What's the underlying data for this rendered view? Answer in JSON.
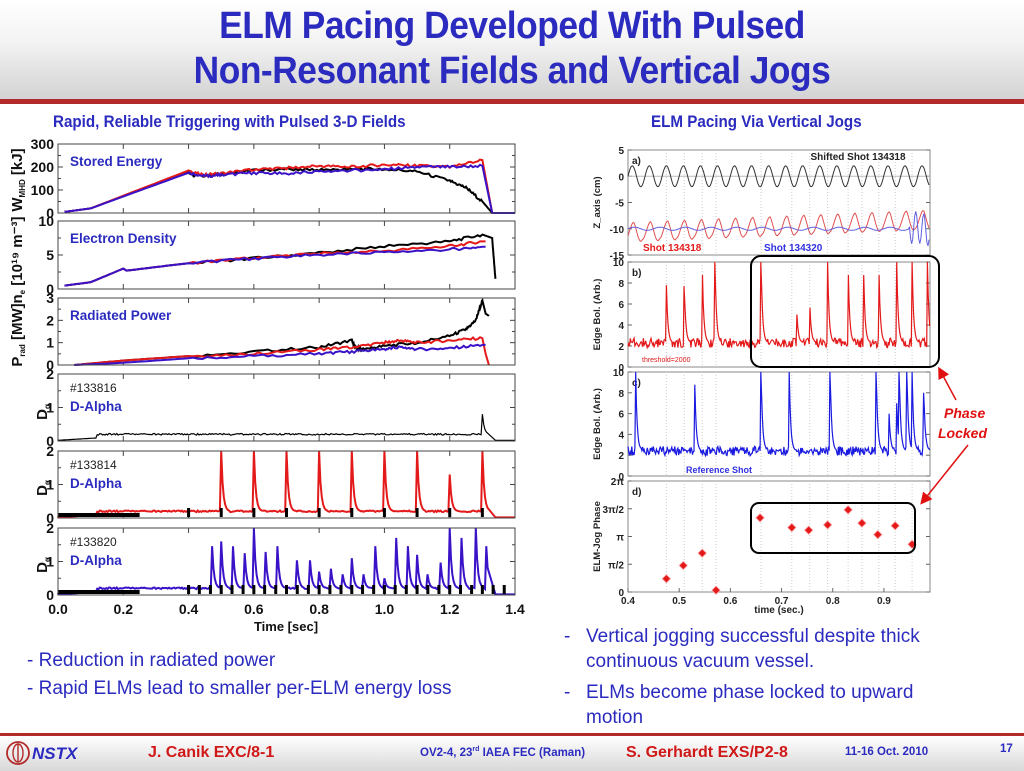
{
  "slide": {
    "title_line1": "ELM Pacing Developed With Pulsed",
    "title_line2": "Non-Resonant Fields and Vertical Jogs",
    "left_heading": "Rapid, Reliable Triggering with Pulsed 3-D Fields",
    "right_heading": "ELM Pacing Via Vertical Jogs",
    "left_bullets": [
      "- Reduction in radiated power",
      "- Rapid ELMs lead to smaller per-ELM energy loss"
    ],
    "right_bullets": [
      {
        "dash": "-",
        "line1": "Vertical jogging successful despite thick",
        "line2": "continuous vacuum vessel."
      },
      {
        "dash": "-",
        "line1": "ELMs become phase locked to upward",
        "line2": "motion"
      }
    ],
    "annotation": {
      "line1": "Phase",
      "line2": "Locked",
      "color": "#e01010"
    },
    "colors": {
      "title": "#2b2bbf",
      "accent_red": "#b22a2a",
      "series_black": "#000000",
      "series_red": "#e41a1a",
      "series_blue": "#3a12c8"
    }
  },
  "footer": {
    "logo_text": "NSTX",
    "author1": "J. Canik EXC/8-1",
    "conference": "OV2-4, 23",
    "conference_sup": "rd",
    "conference_rest": " IAEA FEC (Raman)",
    "author2": "S. Gerhardt EXS/P2-8",
    "date": "11-16 Oct. 2010",
    "page": "17"
  },
  "chart_data": [
    {
      "type": "line",
      "title": "Stored Energy",
      "ylabel": "W_MHD [kJ]",
      "xlim": [
        0,
        1.4
      ],
      "ylim": [
        0,
        300
      ],
      "yticks": [
        0,
        100,
        200,
        300
      ],
      "series": [
        {
          "name": "#133816",
          "color": "#000000",
          "x": [
            0.02,
            0.1,
            0.4,
            0.42,
            0.5,
            0.6,
            0.7,
            0.8,
            0.9,
            1.0,
            1.1,
            1.2,
            1.25,
            1.3,
            1.33
          ],
          "y": [
            5,
            20,
            180,
            160,
            170,
            185,
            190,
            188,
            190,
            192,
            180,
            140,
            110,
            50,
            0
          ]
        },
        {
          "name": "#133814",
          "color": "#e41a1a",
          "x": [
            0.02,
            0.1,
            0.4,
            0.45,
            0.5,
            0.6,
            0.7,
            0.8,
            0.9,
            1.0,
            1.1,
            1.2,
            1.3,
            1.33,
            1.4
          ],
          "y": [
            5,
            20,
            185,
            165,
            172,
            190,
            195,
            205,
            200,
            210,
            205,
            200,
            230,
            0,
            0
          ]
        },
        {
          "name": "#133820",
          "color": "#3a12c8",
          "x": [
            0.02,
            0.1,
            0.4,
            0.45,
            0.5,
            0.6,
            0.7,
            0.8,
            0.9,
            1.0,
            1.1,
            1.2,
            1.3,
            1.33,
            1.4
          ],
          "y": [
            5,
            20,
            175,
            160,
            165,
            175,
            170,
            180,
            185,
            190,
            200,
            200,
            205,
            0,
            0
          ]
        }
      ]
    },
    {
      "type": "line",
      "title": "Electron Density",
      "ylabel": "n_e [10^19 m^-3]",
      "xlim": [
        0,
        1.4
      ],
      "ylim": [
        0,
        10
      ],
      "yticks": [
        0,
        5,
        10
      ],
      "series": [
        {
          "name": "#133816",
          "color": "#000000",
          "x": [
            0.02,
            0.1,
            0.2,
            0.21,
            0.4,
            0.6,
            0.8,
            1.0,
            1.2,
            1.3,
            1.33,
            1.34
          ],
          "y": [
            0.5,
            1,
            3,
            2.7,
            3.8,
            4.5,
            5.3,
            6.3,
            7.0,
            8.0,
            7.5,
            1.5
          ]
        },
        {
          "name": "#133814",
          "color": "#e41a1a",
          "x": [
            0.02,
            0.1,
            0.2,
            0.21,
            0.4,
            0.6,
            0.8,
            1.0,
            1.2,
            1.3,
            1.31
          ],
          "y": [
            0.5,
            1,
            3,
            2.7,
            3.8,
            4.6,
            5.2,
            5.6,
            6.3,
            7.0,
            7.0
          ]
        },
        {
          "name": "#133820",
          "color": "#3a12c8",
          "x": [
            0.02,
            0.1,
            0.2,
            0.21,
            0.4,
            0.6,
            0.8,
            1.0,
            1.2,
            1.3,
            1.31
          ],
          "y": [
            0.5,
            1,
            3,
            2.7,
            3.8,
            4.5,
            5.0,
            5.4,
            5.8,
            6.2,
            6.2
          ]
        }
      ]
    },
    {
      "type": "line",
      "title": "Radiated Power",
      "ylabel": "P_rad [MW]",
      "xlim": [
        0,
        1.4
      ],
      "ylim": [
        0,
        3
      ],
      "yticks": [
        0,
        1,
        2,
        3
      ],
      "series": [
        {
          "name": "#133816",
          "color": "#000000",
          "x": [
            0.05,
            0.2,
            0.4,
            0.6,
            0.8,
            0.9,
            0.91,
            0.93,
            1.0,
            1.1,
            1.2,
            1.25,
            1.28,
            1.3,
            1.31,
            1.32
          ],
          "y": [
            0.0,
            0.2,
            0.4,
            0.6,
            0.8,
            1.1,
            0.8,
            0.7,
            0.85,
            1.0,
            1.3,
            1.6,
            2.0,
            2.9,
            2.3,
            2.2
          ]
        },
        {
          "name": "#133814",
          "color": "#e41a1a",
          "x": [
            0.05,
            0.2,
            0.4,
            0.6,
            0.8,
            0.9,
            1.0,
            1.05,
            1.1,
            1.2,
            1.3,
            1.31,
            1.32
          ],
          "y": [
            0.0,
            0.2,
            0.4,
            0.5,
            0.7,
            0.8,
            1.0,
            1.1,
            1.0,
            1.1,
            1.2,
            0.5,
            0.0
          ]
        },
        {
          "name": "#133820",
          "color": "#3a12c8",
          "x": [
            0.05,
            0.2,
            0.4,
            0.6,
            0.8,
            0.9,
            1.0,
            1.05,
            1.1,
            1.2,
            1.3,
            1.31
          ],
          "y": [
            0.0,
            0.1,
            0.3,
            0.4,
            0.5,
            0.6,
            0.7,
            0.8,
            0.7,
            0.75,
            0.9,
            0.9
          ]
        }
      ]
    },
    {
      "type": "line",
      "title": "D-Alpha",
      "shot": "#133816",
      "ylabel": "D_alpha",
      "xlim": [
        0,
        1.4
      ],
      "ylim": [
        0,
        2
      ],
      "yticks": [
        0,
        1,
        2
      ],
      "baseline": 0.2,
      "spikes": [
        {
          "x": 1.3,
          "h": 0.8
        },
        {
          "x": 1.32,
          "h": 2.0
        },
        {
          "x": 1.33,
          "h": 0.6
        }
      ],
      "color": "#000000"
    },
    {
      "type": "line",
      "title": "D-Alpha",
      "shot": "#133814",
      "ylabel": "D_alpha",
      "xlim": [
        0,
        1.4
      ],
      "ylim": [
        0,
        2
      ],
      "yticks": [
        0,
        1,
        2
      ],
      "baseline": 0.2,
      "spikes": [
        {
          "x": 0.5,
          "h": 2.0
        },
        {
          "x": 0.6,
          "h": 2.0
        },
        {
          "x": 0.7,
          "h": 2.0
        },
        {
          "x": 0.8,
          "h": 2.0
        },
        {
          "x": 0.9,
          "h": 2.0
        },
        {
          "x": 1.0,
          "h": 2.0
        },
        {
          "x": 1.1,
          "h": 2.0
        },
        {
          "x": 1.2,
          "h": 1.3
        },
        {
          "x": 1.3,
          "h": 2.0
        },
        {
          "x": 1.32,
          "h": 2.0
        }
      ],
      "pulses": [
        0.4,
        0.5,
        0.6,
        0.7,
        0.8,
        0.9,
        1.0,
        1.1,
        1.2,
        1.3
      ],
      "color": "#e41a1a"
    },
    {
      "type": "line",
      "title": "D-Alpha",
      "shot": "#133820",
      "ylabel": "D_alpha",
      "xlim": [
        0,
        1.4
      ],
      "ylim": [
        0,
        2
      ],
      "yticks": [
        0,
        1,
        2
      ],
      "xticks": [
        0.0,
        0.2,
        0.4,
        0.6,
        0.8,
        1.0,
        1.2,
        1.4
      ],
      "xlabel": "Time [sec]",
      "baseline": 0.2,
      "spikes": [
        {
          "x": 0.47,
          "h": 2.0
        },
        {
          "x": 0.5,
          "h": 1.6
        },
        {
          "x": 0.535,
          "h": 1.7
        },
        {
          "x": 0.57,
          "h": 1.7
        },
        {
          "x": 0.6,
          "h": 2.0
        },
        {
          "x": 0.635,
          "h": 1.5
        },
        {
          "x": 0.67,
          "h": 2.0
        },
        {
          "x": 0.73,
          "h": 1.4
        },
        {
          "x": 0.77,
          "h": 1.4
        },
        {
          "x": 0.8,
          "h": 0.7
        },
        {
          "x": 0.835,
          "h": 0.9
        },
        {
          "x": 0.87,
          "h": 0.8
        },
        {
          "x": 0.9,
          "h": 1.1
        },
        {
          "x": 0.935,
          "h": 0.7
        },
        {
          "x": 0.97,
          "h": 2.0
        },
        {
          "x": 1.0,
          "h": 0.5
        },
        {
          "x": 1.035,
          "h": 2.0
        },
        {
          "x": 1.07,
          "h": 2.0
        },
        {
          "x": 1.1,
          "h": 1.2
        },
        {
          "x": 1.13,
          "h": 0.8
        },
        {
          "x": 1.17,
          "h": 1.3
        },
        {
          "x": 1.2,
          "h": 2.0
        },
        {
          "x": 1.235,
          "h": 2.0
        },
        {
          "x": 1.28,
          "h": 2.0
        },
        {
          "x": 1.31,
          "h": 2.0
        },
        {
          "x": 1.32,
          "h": 2.0
        }
      ],
      "pulses": [
        0.4,
        0.433,
        0.467,
        0.5,
        0.533,
        0.567,
        0.6,
        0.633,
        0.667,
        0.7,
        0.733,
        0.767,
        0.8,
        0.833,
        0.867,
        0.9,
        0.933,
        0.967,
        1.0,
        1.033,
        1.067,
        1.1,
        1.133,
        1.167,
        1.2,
        1.233,
        1.267,
        1.3,
        1.333,
        1.367
      ],
      "color": "#3a12c8"
    },
    {
      "type": "line",
      "panel": "a)",
      "ylabel": "Z_axis (cm)",
      "xlim": [
        0.4,
        0.99
      ],
      "ylim": [
        -15,
        5
      ],
      "yticks": [
        5,
        0,
        -5,
        -10,
        -15
      ],
      "annotations": [
        "Shifted Shot 134318",
        "Shot 134318",
        "Shot 134320"
      ],
      "series": [
        {
          "name": "Shifted Shot 134318",
          "color": "#333333",
          "offset": 0,
          "amplitude": 2.0,
          "period": 0.0333
        },
        {
          "name": "Shot 134318",
          "color": "#e05050",
          "offset": -10.5,
          "amplitude": 2.0,
          "period": 0.0333
        },
        {
          "name": "Shot 134320",
          "color": "#6060e0",
          "offset": -10.0,
          "amplitude": 0.3,
          "period": 0.05
        }
      ]
    },
    {
      "type": "line",
      "panel": "b)",
      "ylabel": "Edge Bol. (Arb.)",
      "xlim": [
        0.4,
        0.99
      ],
      "ylim": [
        0,
        10
      ],
      "yticks": [
        0,
        2,
        4,
        6,
        8,
        10
      ],
      "annotation": "threshold=2000",
      "color": "#e41a1a",
      "baseline": 2.3,
      "spikes": [
        {
          "x": 0.475,
          "h": 7.8
        },
        {
          "x": 0.51,
          "h": 7.7
        },
        {
          "x": 0.545,
          "h": 10
        },
        {
          "x": 0.57,
          "h": 10
        },
        {
          "x": 0.66,
          "h": 10
        },
        {
          "x": 0.73,
          "h": 5
        },
        {
          "x": 0.755,
          "h": 6.3
        },
        {
          "x": 0.79,
          "h": 10
        },
        {
          "x": 0.83,
          "h": 10
        },
        {
          "x": 0.86,
          "h": 10
        },
        {
          "x": 0.89,
          "h": 10
        },
        {
          "x": 0.925,
          "h": 10
        },
        {
          "x": 0.955,
          "h": 10
        },
        {
          "x": 0.985,
          "h": 10
        }
      ]
    },
    {
      "type": "line",
      "panel": "c)",
      "ylabel": "Edge Bol. (Arb.)",
      "xlim": [
        0.4,
        0.99
      ],
      "ylim": [
        0,
        10
      ],
      "yticks": [
        0,
        2,
        4,
        6,
        8,
        10
      ],
      "annotation": "Reference Shot",
      "color": "#1a1ae0",
      "baseline": 2.4,
      "spikes": [
        {
          "x": 0.415,
          "h": 10
        },
        {
          "x": 0.53,
          "h": 10
        },
        {
          "x": 0.66,
          "h": 10
        },
        {
          "x": 0.715,
          "h": 10
        },
        {
          "x": 0.795,
          "h": 10
        },
        {
          "x": 0.885,
          "h": 10
        },
        {
          "x": 0.91,
          "h": 6
        },
        {
          "x": 0.925,
          "h": 7
        },
        {
          "x": 0.93,
          "h": 10
        },
        {
          "x": 0.945,
          "h": 10
        },
        {
          "x": 0.955,
          "h": 10
        },
        {
          "x": 0.978,
          "h": 8
        }
      ]
    },
    {
      "type": "scatter",
      "panel": "d)",
      "ylabel": "ELM-Jog Phase",
      "xlabel": "time (sec.)",
      "xlim": [
        0.4,
        0.99
      ],
      "ylim": [
        0,
        6.2832
      ],
      "xticks": [
        0.4,
        0.5,
        0.6,
        0.7,
        0.8,
        0.9
      ],
      "yticks": [
        "0",
        "π/2",
        "π",
        "3π/2",
        "2π"
      ],
      "color": "#e41a1a",
      "points": [
        {
          "x": 0.475,
          "y": 0.75
        },
        {
          "x": 0.508,
          "y": 1.5
        },
        {
          "x": 0.545,
          "y": 2.2
        },
        {
          "x": 0.572,
          "y": 0.1
        },
        {
          "x": 0.658,
          "y": 4.2
        },
        {
          "x": 0.72,
          "y": 3.65
        },
        {
          "x": 0.753,
          "y": 3.5
        },
        {
          "x": 0.79,
          "y": 3.8
        },
        {
          "x": 0.83,
          "y": 4.65
        },
        {
          "x": 0.857,
          "y": 3.9
        },
        {
          "x": 0.888,
          "y": 3.25
        },
        {
          "x": 0.922,
          "y": 3.75
        },
        {
          "x": 0.955,
          "y": 2.7
        }
      ]
    }
  ]
}
